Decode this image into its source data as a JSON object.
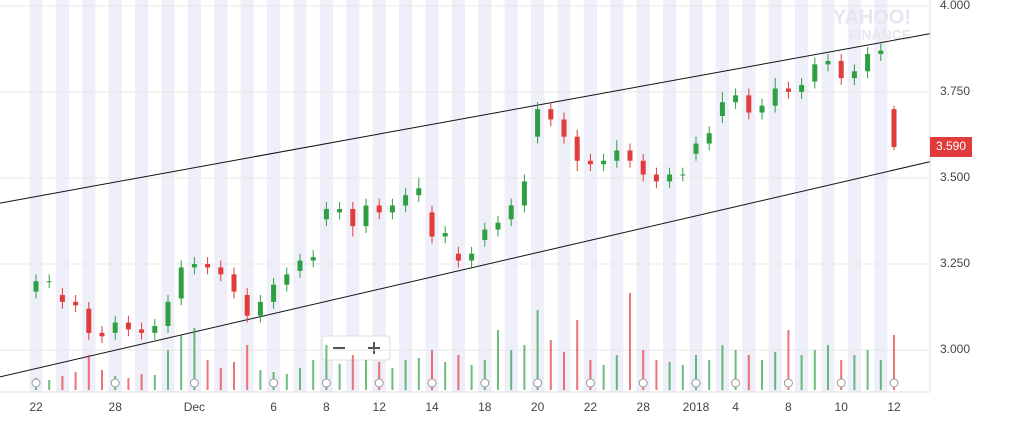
{
  "chart_data": {
    "type": "candlestick",
    "watermark": [
      "YAHOO!",
      "FINANCE"
    ],
    "categories": [
      "22",
      null,
      null,
      null,
      null,
      null,
      "28",
      null,
      null,
      null,
      null,
      null,
      "Dec",
      null,
      null,
      null,
      null,
      null,
      "6",
      null,
      null,
      null,
      "8",
      null,
      null,
      null,
      "12",
      null,
      null,
      null,
      "14",
      null,
      null,
      null,
      "18",
      null,
      null,
      null,
      "20",
      null,
      null,
      null,
      "22",
      null,
      null,
      null,
      "28",
      null,
      null,
      null,
      "2018",
      null,
      null,
      "4",
      null,
      null,
      null,
      "8",
      null,
      null,
      null,
      "10",
      null,
      null,
      null,
      "12"
    ],
    "open": [
      3.17,
      3.2,
      3.16,
      3.14,
      3.12,
      3.05,
      3.05,
      3.08,
      3.06,
      3.05,
      3.07,
      3.15,
      3.24,
      3.25,
      3.24,
      3.22,
      3.16,
      3.1,
      3.14,
      3.19,
      3.23,
      3.26,
      3.38,
      3.4,
      3.41,
      3.36,
      3.42,
      3.4,
      3.42,
      3.45,
      3.4,
      3.33,
      3.28,
      3.26,
      3.32,
      3.35,
      3.38,
      3.42,
      3.62,
      3.7,
      3.67,
      3.62,
      3.55,
      3.54,
      3.55,
      3.58,
      3.55,
      3.51,
      3.49,
      3.51,
      3.57,
      3.6,
      3.68,
      3.72,
      3.74,
      3.69,
      3.71,
      3.76,
      3.75,
      3.78,
      3.83,
      3.84,
      3.79,
      3.81,
      3.86,
      3.7
    ],
    "high": [
      3.22,
      3.22,
      3.18,
      3.16,
      3.14,
      3.07,
      3.1,
      3.1,
      3.08,
      3.09,
      3.16,
      3.26,
      3.27,
      3.27,
      3.26,
      3.24,
      3.18,
      3.16,
      3.21,
      3.24,
      3.28,
      3.29,
      3.43,
      3.43,
      3.43,
      3.44,
      3.44,
      3.44,
      3.47,
      3.5,
      3.42,
      3.36,
      3.3,
      3.3,
      3.37,
      3.39,
      3.44,
      3.51,
      3.72,
      3.72,
      3.69,
      3.64,
      3.57,
      3.57,
      3.61,
      3.6,
      3.57,
      3.53,
      3.53,
      3.53,
      3.62,
      3.65,
      3.75,
      3.76,
      3.76,
      3.73,
      3.79,
      3.78,
      3.79,
      3.85,
      3.86,
      3.86,
      3.83,
      3.88,
      3.89,
      3.71
    ],
    "low": [
      3.15,
      3.18,
      3.12,
      3.11,
      3.03,
      3.02,
      3.03,
      3.04,
      3.03,
      3.03,
      3.05,
      3.13,
      3.22,
      3.22,
      3.2,
      3.15,
      3.08,
      3.08,
      3.12,
      3.17,
      3.21,
      3.24,
      3.36,
      3.38,
      3.33,
      3.34,
      3.38,
      3.38,
      3.4,
      3.43,
      3.31,
      3.31,
      3.24,
      3.24,
      3.3,
      3.33,
      3.36,
      3.4,
      3.6,
      3.65,
      3.6,
      3.52,
      3.52,
      3.52,
      3.53,
      3.53,
      3.49,
      3.47,
      3.47,
      3.49,
      3.55,
      3.58,
      3.66,
      3.7,
      3.67,
      3.67,
      3.69,
      3.73,
      3.73,
      3.76,
      3.81,
      3.77,
      3.77,
      3.79,
      3.84,
      3.58
    ],
    "close": [
      3.2,
      3.2,
      3.14,
      3.13,
      3.05,
      3.04,
      3.08,
      3.06,
      3.05,
      3.07,
      3.14,
      3.24,
      3.25,
      3.24,
      3.22,
      3.17,
      3.1,
      3.14,
      3.19,
      3.22,
      3.26,
      3.27,
      3.41,
      3.41,
      3.36,
      3.42,
      3.4,
      3.42,
      3.45,
      3.47,
      3.33,
      3.34,
      3.26,
      3.28,
      3.35,
      3.37,
      3.42,
      3.49,
      3.7,
      3.67,
      3.62,
      3.55,
      3.54,
      3.55,
      3.58,
      3.55,
      3.51,
      3.49,
      3.51,
      3.51,
      3.6,
      3.63,
      3.72,
      3.74,
      3.69,
      3.71,
      3.76,
      3.75,
      3.77,
      3.83,
      3.84,
      3.79,
      3.81,
      3.86,
      3.87,
      3.59
    ],
    "volume": [
      12,
      10,
      14,
      18,
      35,
      20,
      14,
      12,
      16,
      15,
      40,
      55,
      62,
      30,
      22,
      28,
      45,
      20,
      18,
      16,
      22,
      30,
      45,
      26,
      35,
      30,
      28,
      22,
      30,
      32,
      40,
      28,
      35,
      25,
      30,
      60,
      40,
      45,
      80,
      50,
      38,
      70,
      30,
      25,
      35,
      97,
      40,
      30,
      28,
      25,
      35,
      30,
      45,
      40,
      35,
      30,
      38,
      60,
      35,
      40,
      45,
      30,
      35,
      40,
      30,
      55
    ],
    "volume_ylim": [
      0,
      100
    ],
    "up_color": "#2ea043",
    "down_color": "#e23b3b",
    "ylim": [
      2.884,
      4.017
    ],
    "yticks": [
      {
        "value": 3,
        "label": "3.000"
      },
      {
        "value": 3.25,
        "label": "3.250"
      },
      {
        "value": 3.5,
        "label": "3.500"
      },
      {
        "value": 3.75,
        "label": "3.750"
      },
      {
        "value": 4,
        "label": "4.000"
      }
    ],
    "grid": true,
    "last_price": {
      "value": 3.59,
      "label": "3.590",
      "color": "#e23b3b"
    },
    "trendlines": [
      {
        "x": [
          -2.73,
          67.7
        ],
        "y": [
          3.427,
          3.919
        ]
      },
      {
        "x": [
          -2.73,
          67.7
        ],
        "y": [
          2.922,
          3.547
        ]
      }
    ]
  }
}
